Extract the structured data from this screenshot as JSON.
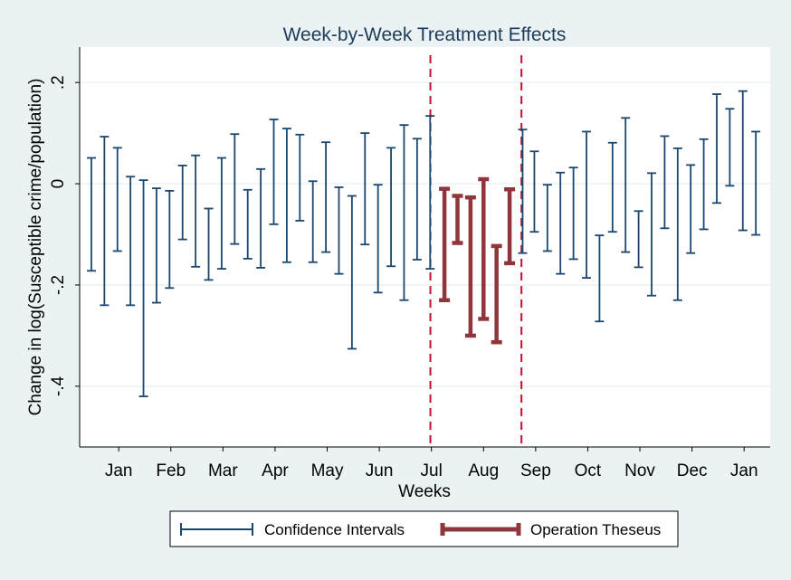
{
  "chart_data": {
    "type": "errorbar",
    "title": "Week-by-Week Treatment Effects",
    "xlabel": "Weeks",
    "ylabel": "Change in log(Susceptible crime/population)",
    "ylim": [
      -0.52,
      0.27
    ],
    "yticks": [
      {
        "value": 0.2,
        "label": ".2"
      },
      {
        "value": 0,
        "label": "0"
      },
      {
        "value": -0.2,
        "label": "-.2"
      },
      {
        "value": -0.4,
        "label": "-.4"
      }
    ],
    "xlim": [
      0,
      53
    ],
    "month_ticks": [
      {
        "pos": 3.0,
        "label": "Jan"
      },
      {
        "pos": 7.0,
        "label": "Feb"
      },
      {
        "pos": 11.0,
        "label": "Mar"
      },
      {
        "pos": 15.0,
        "label": "Apr"
      },
      {
        "pos": 19.0,
        "label": "May"
      },
      {
        "pos": 23.0,
        "label": "Jun"
      },
      {
        "pos": 27.0,
        "label": "Jul"
      },
      {
        "pos": 31.0,
        "label": "Aug"
      },
      {
        "pos": 35.0,
        "label": "Sep"
      },
      {
        "pos": 39.0,
        "label": "Oct"
      },
      {
        "pos": 43.0,
        "label": "Nov"
      },
      {
        "pos": 47.0,
        "label": "Dec"
      },
      {
        "pos": 51.0,
        "label": "Jan"
      }
    ],
    "vertical_markers": [
      26.92,
      33.91
    ],
    "grid": true,
    "legend_position": "bottom",
    "series": [
      {
        "name": "Confidence Intervals",
        "color": "#1a476f",
        "points": [
          {
            "x": 0.9,
            "low": -0.172,
            "high": 0.051
          },
          {
            "x": 1.9,
            "low": -0.24,
            "high": 0.093
          },
          {
            "x": 2.9,
            "low": -0.133,
            "high": 0.071
          },
          {
            "x": 3.9,
            "low": -0.24,
            "high": 0.014
          },
          {
            "x": 4.9,
            "low": -0.42,
            "high": 0.007
          },
          {
            "x": 5.9,
            "low": -0.235,
            "high": -0.009
          },
          {
            "x": 6.9,
            "low": -0.206,
            "high": -0.014
          },
          {
            "x": 7.9,
            "low": -0.11,
            "high": 0.036
          },
          {
            "x": 8.9,
            "low": -0.164,
            "high": 0.056
          },
          {
            "x": 9.9,
            "low": -0.19,
            "high": -0.049
          },
          {
            "x": 10.9,
            "low": -0.168,
            "high": 0.051
          },
          {
            "x": 11.9,
            "low": -0.119,
            "high": 0.098
          },
          {
            "x": 12.9,
            "low": -0.148,
            "high": -0.012
          },
          {
            "x": 13.9,
            "low": -0.166,
            "high": 0.029
          },
          {
            "x": 14.9,
            "low": -0.08,
            "high": 0.127
          },
          {
            "x": 15.9,
            "low": -0.155,
            "high": 0.109
          },
          {
            "x": 16.9,
            "low": -0.073,
            "high": 0.097
          },
          {
            "x": 17.9,
            "low": -0.155,
            "high": 0.005
          },
          {
            "x": 18.9,
            "low": -0.135,
            "high": 0.082
          },
          {
            "x": 19.9,
            "low": -0.178,
            "high": -0.007
          },
          {
            "x": 20.9,
            "low": -0.326,
            "high": -0.024
          },
          {
            "x": 21.9,
            "low": -0.12,
            "high": 0.1
          },
          {
            "x": 22.9,
            "low": -0.215,
            "high": -0.002
          },
          {
            "x": 23.9,
            "low": -0.163,
            "high": 0.071
          },
          {
            "x": 24.9,
            "low": -0.23,
            "high": 0.116
          },
          {
            "x": 25.9,
            "low": -0.15,
            "high": 0.089
          },
          {
            "x": 26.9,
            "low": -0.168,
            "high": 0.134
          },
          {
            "x": 34.0,
            "low": -0.137,
            "high": 0.107
          },
          {
            "x": 34.9,
            "low": -0.095,
            "high": 0.064
          },
          {
            "x": 35.9,
            "low": -0.133,
            "high": -0.002
          },
          {
            "x": 36.9,
            "low": -0.178,
            "high": 0.022
          },
          {
            "x": 37.9,
            "low": -0.149,
            "high": 0.032
          },
          {
            "x": 38.9,
            "low": -0.186,
            "high": 0.103
          },
          {
            "x": 39.9,
            "low": -0.272,
            "high": -0.102
          },
          {
            "x": 40.9,
            "low": -0.095,
            "high": 0.081
          },
          {
            "x": 41.9,
            "low": -0.135,
            "high": 0.13
          },
          {
            "x": 42.9,
            "low": -0.165,
            "high": -0.054
          },
          {
            "x": 43.9,
            "low": -0.221,
            "high": 0.021
          },
          {
            "x": 44.9,
            "low": -0.088,
            "high": 0.094
          },
          {
            "x": 45.9,
            "low": -0.23,
            "high": 0.07
          },
          {
            "x": 46.9,
            "low": -0.137,
            "high": 0.037
          },
          {
            "x": 47.9,
            "low": -0.09,
            "high": 0.088
          },
          {
            "x": 48.9,
            "low": -0.038,
            "high": 0.177
          },
          {
            "x": 49.9,
            "low": -0.004,
            "high": 0.148
          },
          {
            "x": 50.9,
            "low": -0.092,
            "high": 0.183
          },
          {
            "x": 51.9,
            "low": -0.101,
            "high": 0.103
          }
        ]
      },
      {
        "name": "Operation Theseus",
        "color": "#90353b",
        "points": [
          {
            "x": 28.0,
            "low": -0.23,
            "high": -0.01
          },
          {
            "x": 29.0,
            "low": -0.117,
            "high": -0.024
          },
          {
            "x": 30.0,
            "low": -0.3,
            "high": -0.027
          },
          {
            "x": 31.0,
            "low": -0.267,
            "high": 0.009
          },
          {
            "x": 32.0,
            "low": -0.313,
            "high": -0.123
          },
          {
            "x": 33.0,
            "low": -0.157,
            "high": -0.011
          }
        ]
      }
    ]
  }
}
